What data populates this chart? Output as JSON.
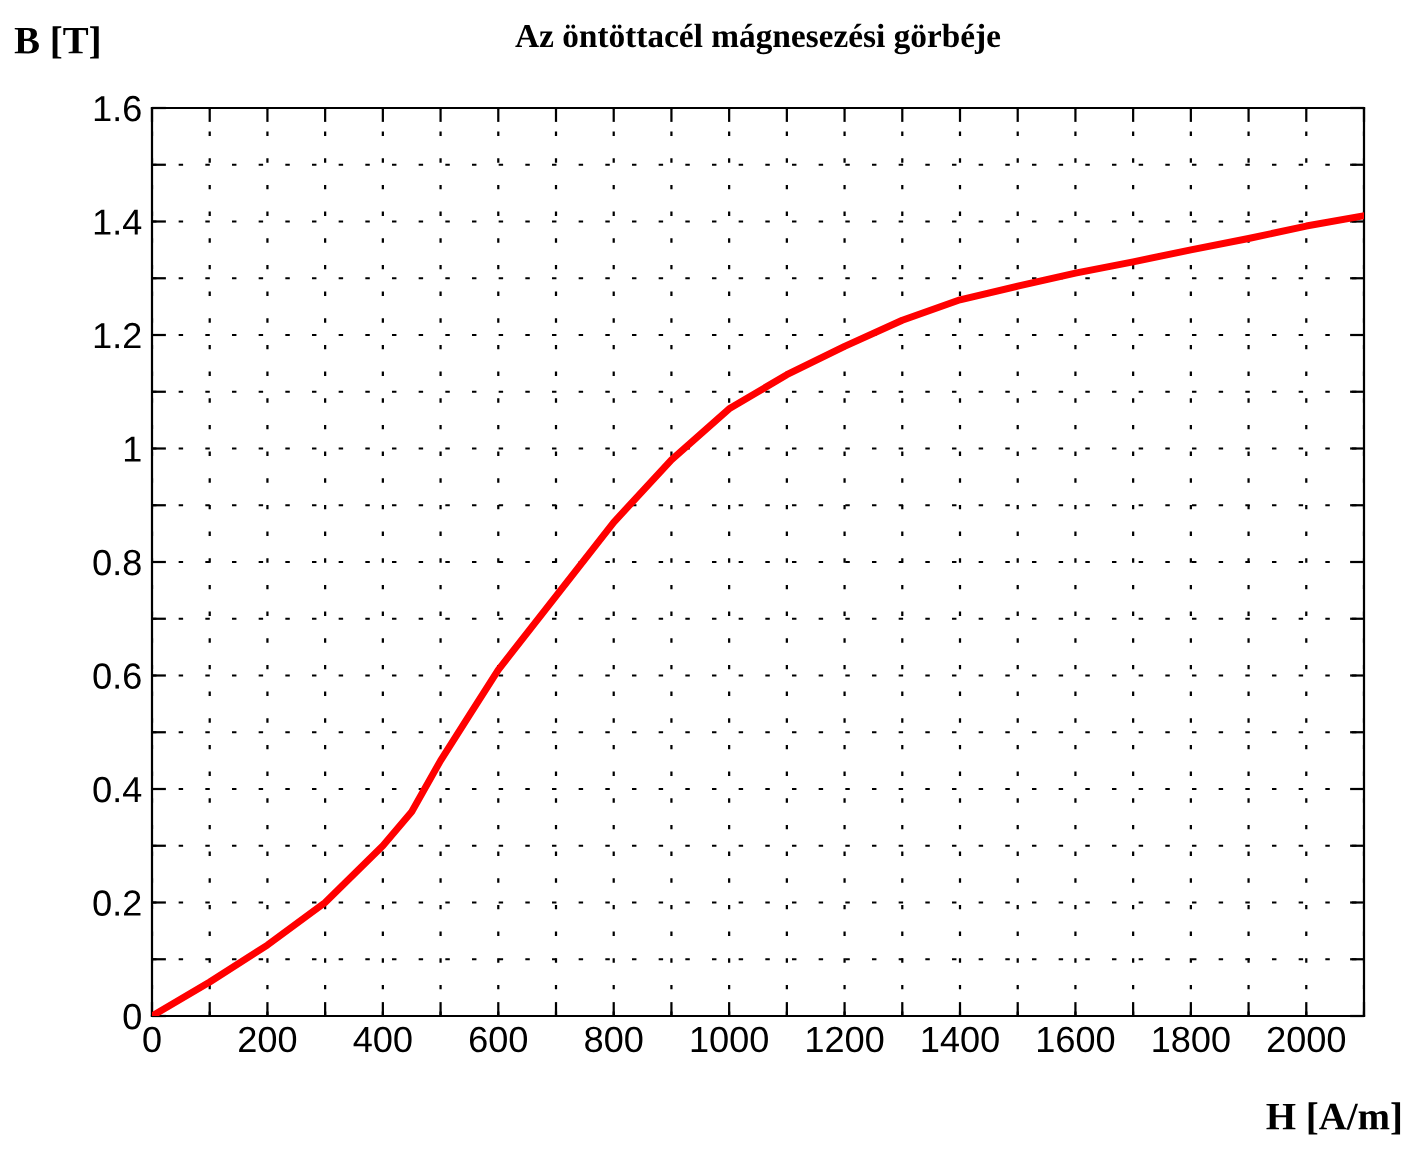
{
  "chart_data": {
    "type": "line",
    "title": "Az öntöttacél mágnesezési görbéje",
    "xlabel": "H [A/m]",
    "ylabel": "B [T]",
    "x": [
      0,
      100,
      200,
      300,
      400,
      450,
      500,
      550,
      600,
      700,
      800,
      900,
      1000,
      1100,
      1200,
      1300,
      1400,
      1500,
      1600,
      1700,
      1800,
      1900,
      2000,
      2100
    ],
    "series": [
      {
        "color": "#ff0000",
        "values": [
          0,
          0.06,
          0.125,
          0.2,
          0.3,
          0.36,
          0.45,
          0.53,
          0.61,
          0.74,
          0.87,
          0.98,
          1.07,
          1.13,
          1.18,
          1.226,
          1.262,
          1.286,
          1.309,
          1.329,
          1.35,
          1.37,
          1.392,
          1.41
        ]
      }
    ],
    "xlim": [
      0,
      2100
    ],
    "ylim": [
      0,
      1.6
    ],
    "xticks": [
      0,
      {
        "value": 100,
        "label": null
      },
      200,
      {
        "value": 300,
        "label": null
      },
      400,
      {
        "value": 500,
        "label": null
      },
      600,
      {
        "value": 700,
        "label": null
      },
      800,
      {
        "value": 900,
        "label": null
      },
      1000,
      {
        "value": 1100,
        "label": null
      },
      1200,
      {
        "value": 1300,
        "label": null
      },
      1400,
      {
        "value": 1500,
        "label": null
      },
      1600,
      {
        "value": 1700,
        "label": null
      },
      1800,
      {
        "value": 1900,
        "label": null
      },
      2000,
      {
        "value": 2100,
        "label": null
      }
    ],
    "yticks": [
      0,
      {
        "value": 0.1,
        "label": null
      },
      0.2,
      {
        "value": 0.3,
        "label": null
      },
      0.4,
      {
        "value": 0.5,
        "label": null
      },
      0.6,
      {
        "value": 0.7,
        "label": null
      },
      0.8,
      {
        "value": 0.9,
        "label": null
      },
      1,
      {
        "value": 1.1,
        "label": null
      },
      1.2,
      {
        "value": 1.3,
        "label": null
      },
      1.4,
      {
        "value": 1.5,
        "label": null
      },
      1.6
    ],
    "grid": true,
    "line_style": "solid",
    "marker": "none"
  }
}
